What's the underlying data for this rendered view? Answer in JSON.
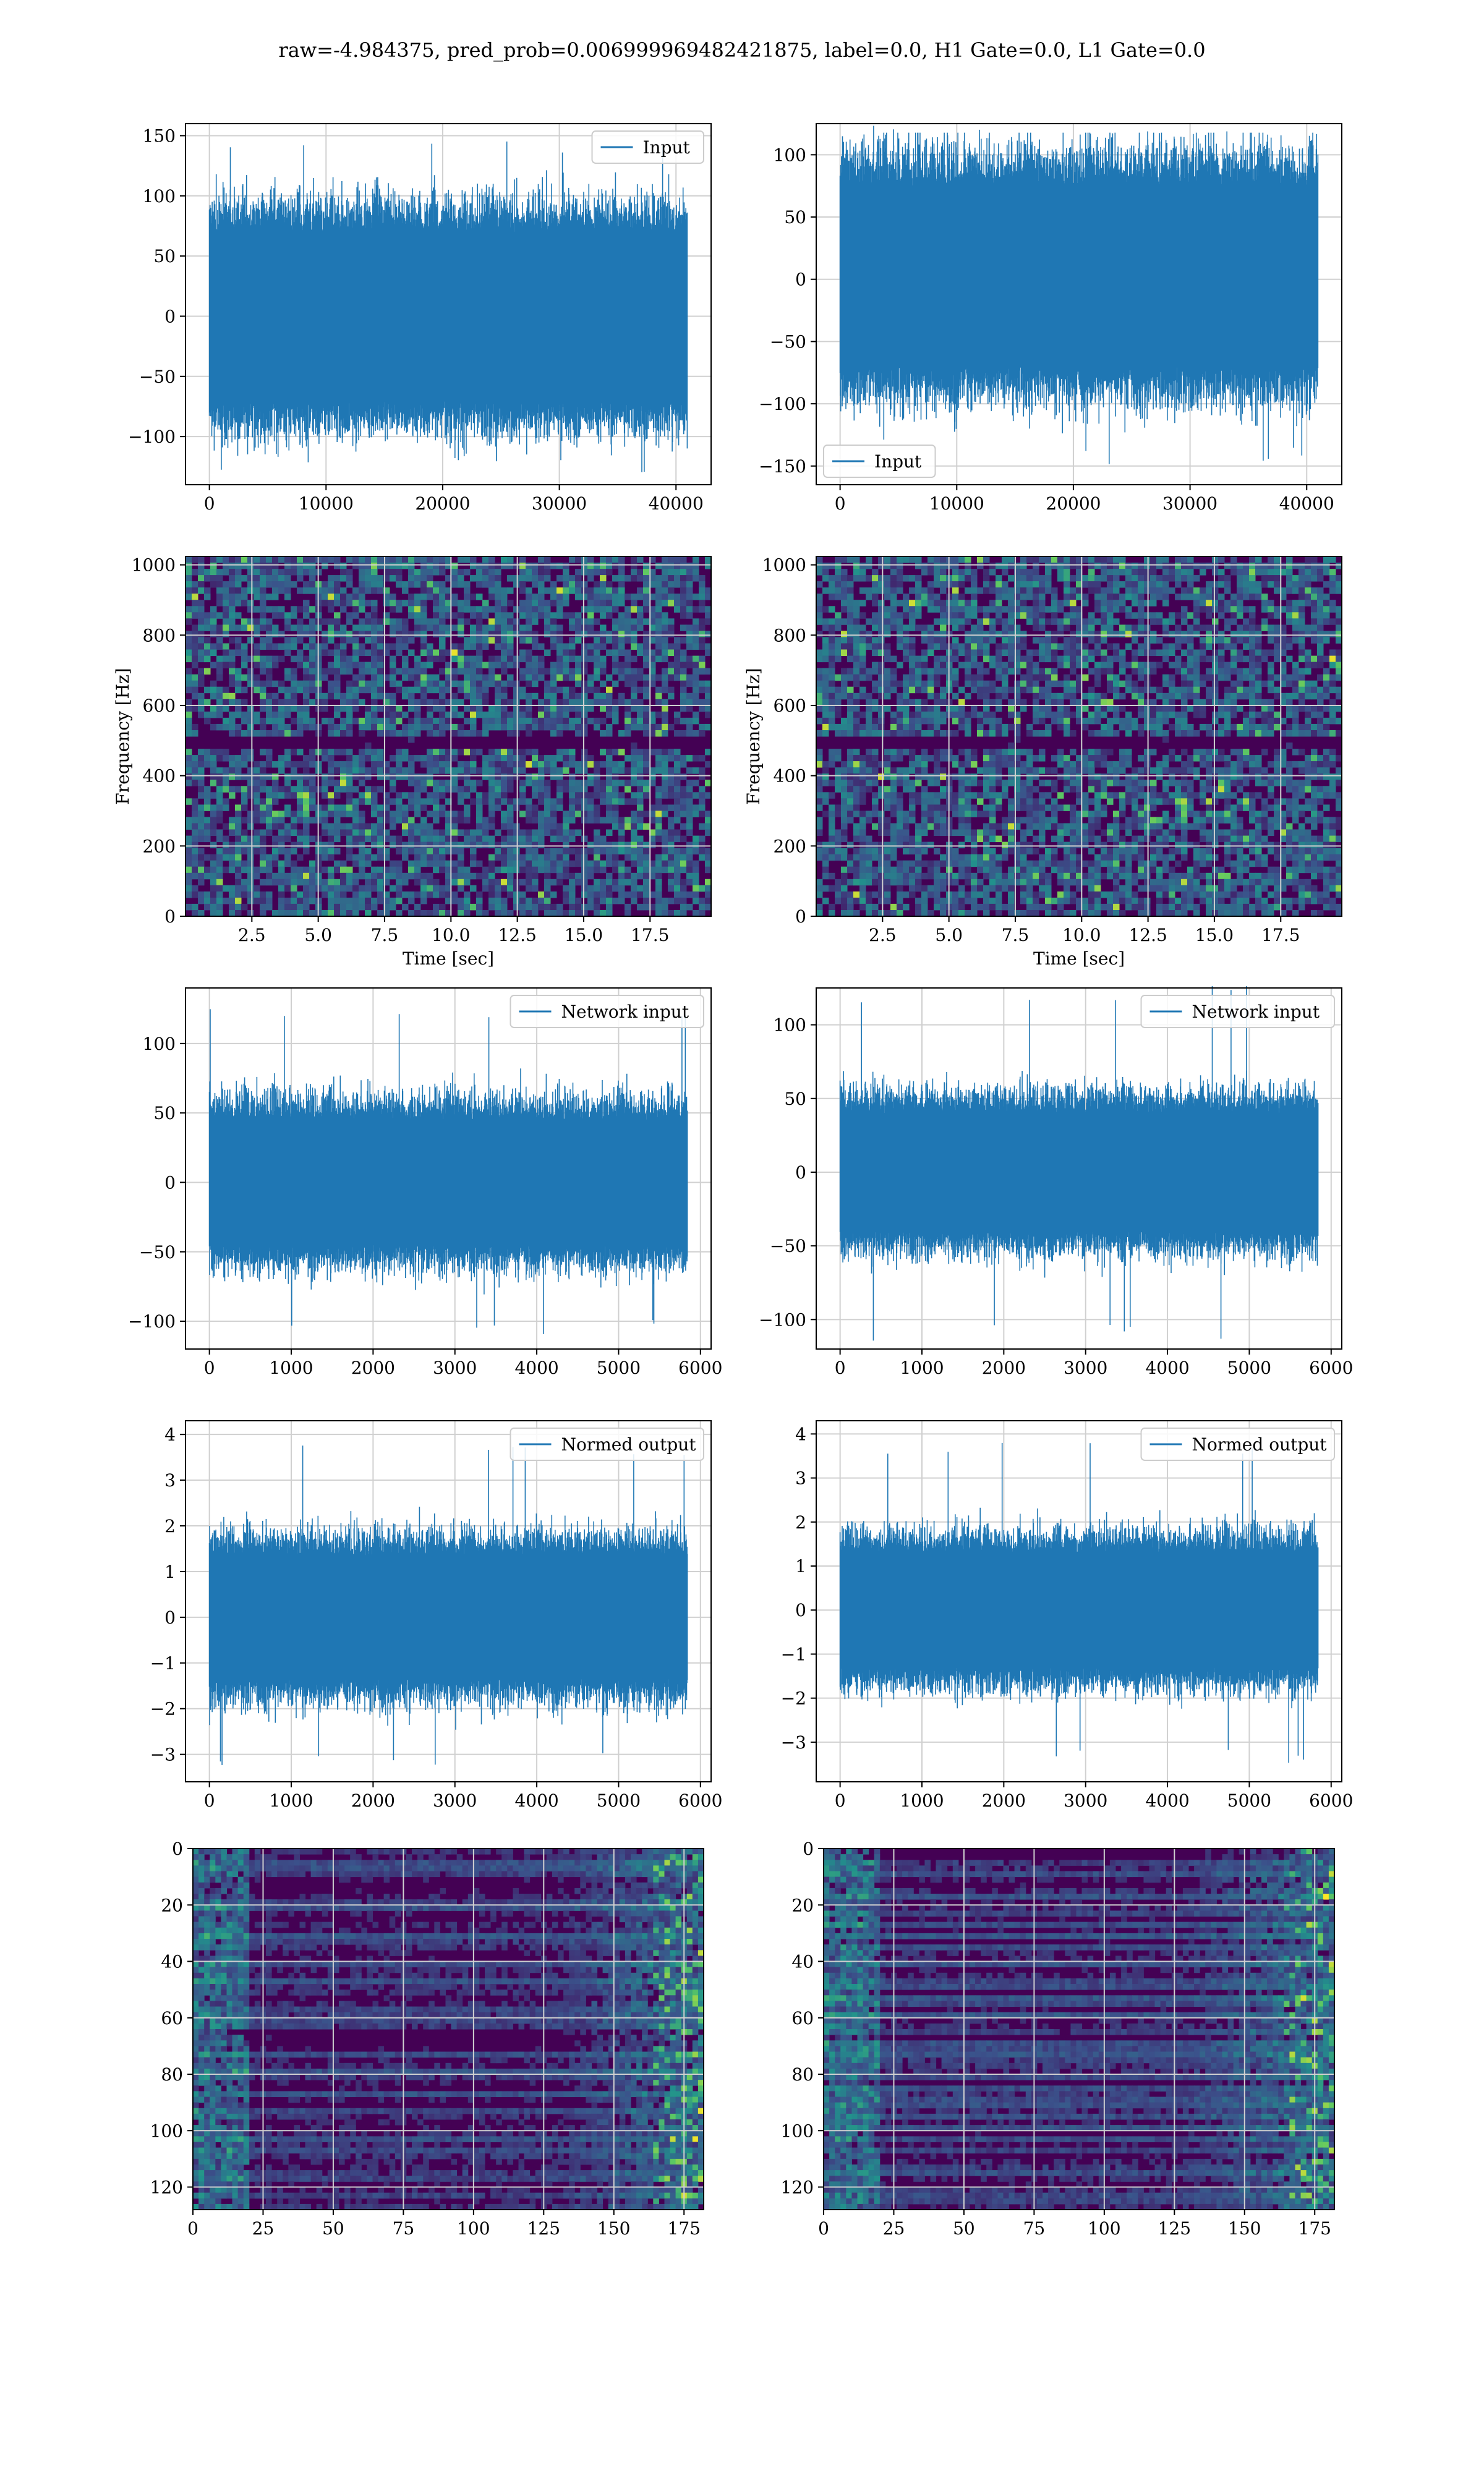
{
  "figure": {
    "title": "raw=-4.984375, pred_prob=0.006999969482421875, label=0.0, H1 Gate=0.0, L1 Gate=0.0"
  },
  "colors": {
    "series": "#1f77b4",
    "grid": "#d0d0d0",
    "viridis_low": "#440154",
    "viridis_mid": "#21918c",
    "viridis_high": "#fde725"
  },
  "chart_data": [
    {
      "id": "ts-input-h1",
      "type": "line",
      "row": 1,
      "col": 1,
      "legend": {
        "entries": [
          "Input"
        ],
        "placement": "upper right"
      },
      "xlim": [
        -2048,
        43008
      ],
      "ylim": [
        -140,
        160
      ],
      "xticks": [
        0,
        10000,
        20000,
        30000,
        40000
      ],
      "xtick_labels": [
        "0",
        "10000",
        "20000",
        "30000",
        "40000"
      ],
      "yticks": [
        -100,
        -50,
        0,
        50,
        100,
        150
      ],
      "ytick_labels": [
        "−100",
        "−50",
        "0",
        "50",
        "100",
        "150"
      ],
      "x_range": [
        0,
        40960
      ],
      "envelope": [
        -70,
        70
      ],
      "peaks": [
        -130,
        150
      ],
      "grid": true
    },
    {
      "id": "ts-input-l1",
      "type": "line",
      "row": 1,
      "col": 2,
      "legend": {
        "entries": [
          "Input"
        ],
        "placement": "lower left"
      },
      "xlim": [
        -2048,
        43008
      ],
      "ylim": [
        -165,
        125
      ],
      "xticks": [
        0,
        10000,
        20000,
        30000,
        40000
      ],
      "xtick_labels": [
        "0",
        "10000",
        "20000",
        "30000",
        "40000"
      ],
      "yticks": [
        -150,
        -100,
        -50,
        0,
        50,
        100
      ],
      "ytick_labels": [
        "−150",
        "−100",
        "−50",
        "0",
        "50",
        "100"
      ],
      "x_range": [
        0,
        40960
      ],
      "envelope": [
        -70,
        75
      ],
      "peaks": [
        -150,
        128
      ],
      "grid": true
    },
    {
      "id": "spec-h1",
      "type": "heatmap",
      "row": 2,
      "col": 1,
      "xlabel": "Time [sec]",
      "ylabel": "Frequency [Hz]",
      "xlim": [
        0,
        19.8
      ],
      "ylim": [
        0,
        1024
      ],
      "xticks": [
        2.5,
        5.0,
        7.5,
        10.0,
        12.5,
        15.0,
        17.5
      ],
      "xtick_labels": [
        "2.5",
        "5.0",
        "7.5",
        "10.0",
        "12.5",
        "15.0",
        "17.5"
      ],
      "yticks": [
        0,
        200,
        400,
        600,
        800,
        1000
      ],
      "ytick_labels": [
        "0",
        "200",
        "400",
        "600",
        "800",
        "1000"
      ],
      "dark_band_hz": [
        480,
        500
      ],
      "colormap": "viridis",
      "grid": true
    },
    {
      "id": "spec-l1",
      "type": "heatmap",
      "row": 2,
      "col": 2,
      "xlabel": "Time [sec]",
      "ylabel": "Frequency [Hz]",
      "xlim": [
        0,
        19.8
      ],
      "ylim": [
        0,
        1024
      ],
      "xticks": [
        2.5,
        5.0,
        7.5,
        10.0,
        12.5,
        15.0,
        17.5
      ],
      "xtick_labels": [
        "2.5",
        "5.0",
        "7.5",
        "10.0",
        "12.5",
        "15.0",
        "17.5"
      ],
      "yticks": [
        0,
        200,
        400,
        600,
        800,
        1000
      ],
      "ytick_labels": [
        "0",
        "200",
        "400",
        "600",
        "800",
        "1000"
      ],
      "dark_band_hz": [
        480,
        500
      ],
      "colormap": "viridis",
      "grid": true
    },
    {
      "id": "ts-net-h1",
      "type": "line",
      "row": 3,
      "col": 1,
      "legend": {
        "entries": [
          "Network input"
        ],
        "placement": "upper right"
      },
      "xlim": [
        -292,
        6130
      ],
      "ylim": [
        -120,
        140
      ],
      "xticks": [
        0,
        1000,
        2000,
        3000,
        4000,
        5000,
        6000
      ],
      "xtick_labels": [
        "0",
        "1000",
        "2000",
        "3000",
        "4000",
        "5000",
        "6000"
      ],
      "yticks": [
        -100,
        -50,
        0,
        50,
        100
      ],
      "ytick_labels": [
        "−100",
        "−50",
        "0",
        "50",
        "100"
      ],
      "x_range": [
        0,
        5840
      ],
      "envelope": [
        -45,
        45
      ],
      "peaks": [
        -110,
        128
      ],
      "grid": true
    },
    {
      "id": "ts-net-l1",
      "type": "line",
      "row": 3,
      "col": 2,
      "legend": {
        "entries": [
          "Network input"
        ],
        "placement": "upper right"
      },
      "xlim": [
        -292,
        6130
      ],
      "ylim": [
        -120,
        125
      ],
      "xticks": [
        0,
        1000,
        2000,
        3000,
        4000,
        5000,
        6000
      ],
      "xtick_labels": [
        "0",
        "1000",
        "2000",
        "3000",
        "4000",
        "5000",
        "6000"
      ],
      "yticks": [
        -100,
        -50,
        0,
        50,
        100
      ],
      "ytick_labels": [
        "−100",
        "−50",
        "0",
        "50",
        "100"
      ],
      "x_range": [
        0,
        5840
      ],
      "envelope": [
        -40,
        40
      ],
      "peaks": [
        -115,
        128
      ],
      "grid": true
    },
    {
      "id": "ts-normed-h1",
      "type": "line",
      "row": 4,
      "col": 1,
      "legend": {
        "entries": [
          "Normed output"
        ],
        "placement": "upper right"
      },
      "xlim": [
        -292,
        6130
      ],
      "ylim": [
        -3.6,
        4.3
      ],
      "xticks": [
        0,
        1000,
        2000,
        3000,
        4000,
        5000,
        6000
      ],
      "xtick_labels": [
        "0",
        "1000",
        "2000",
        "3000",
        "4000",
        "5000",
        "6000"
      ],
      "yticks": [
        -3,
        -2,
        -1,
        0,
        1,
        2,
        3,
        4
      ],
      "ytick_labels": [
        "−3",
        "−2",
        "−1",
        "0",
        "1",
        "2",
        "3",
        "4"
      ],
      "x_range": [
        0,
        5840
      ],
      "envelope": [
        -1.35,
        1.35
      ],
      "peaks": [
        -3.3,
        3.9
      ],
      "grid": true
    },
    {
      "id": "ts-normed-l1",
      "type": "line",
      "row": 4,
      "col": 2,
      "legend": {
        "entries": [
          "Normed output"
        ],
        "placement": "upper right"
      },
      "xlim": [
        -292,
        6130
      ],
      "ylim": [
        -3.9,
        4.3
      ],
      "xticks": [
        0,
        1000,
        2000,
        3000,
        4000,
        5000,
        6000
      ],
      "xtick_labels": [
        "0",
        "1000",
        "2000",
        "3000",
        "4000",
        "5000",
        "6000"
      ],
      "yticks": [
        -3,
        -2,
        -1,
        0,
        1,
        2,
        3,
        4
      ],
      "ytick_labels": [
        "−3",
        "−2",
        "−1",
        "0",
        "1",
        "2",
        "3",
        "4"
      ],
      "x_range": [
        0,
        5840
      ],
      "envelope": [
        -1.3,
        1.3
      ],
      "peaks": [
        -3.5,
        3.9
      ],
      "grid": true
    },
    {
      "id": "feat-h1",
      "type": "heatmap",
      "row": 5,
      "col": 1,
      "xlim": [
        0,
        182
      ],
      "ylim": [
        128,
        0
      ],
      "xticks": [
        0,
        25,
        50,
        75,
        100,
        125,
        150,
        175
      ],
      "xtick_labels": [
        "0",
        "25",
        "50",
        "75",
        "100",
        "125",
        "150",
        "175"
      ],
      "yticks": [
        0,
        20,
        40,
        60,
        80,
        100,
        120
      ],
      "ytick_labels": [
        "0",
        "20",
        "40",
        "60",
        "80",
        "100",
        "120"
      ],
      "colormap": "viridis",
      "grid": true
    },
    {
      "id": "feat-l1",
      "type": "heatmap",
      "row": 5,
      "col": 2,
      "xlim": [
        0,
        182
      ],
      "ylim": [
        128,
        0
      ],
      "xticks": [
        0,
        25,
        50,
        75,
        100,
        125,
        150,
        175
      ],
      "xtick_labels": [
        "0",
        "25",
        "50",
        "75",
        "100",
        "125",
        "150",
        "175"
      ],
      "yticks": [
        0,
        20,
        40,
        60,
        80,
        100,
        120
      ],
      "ytick_labels": [
        "0",
        "20",
        "40",
        "60",
        "80",
        "100",
        "120"
      ],
      "colormap": "viridis",
      "grid": true
    }
  ]
}
